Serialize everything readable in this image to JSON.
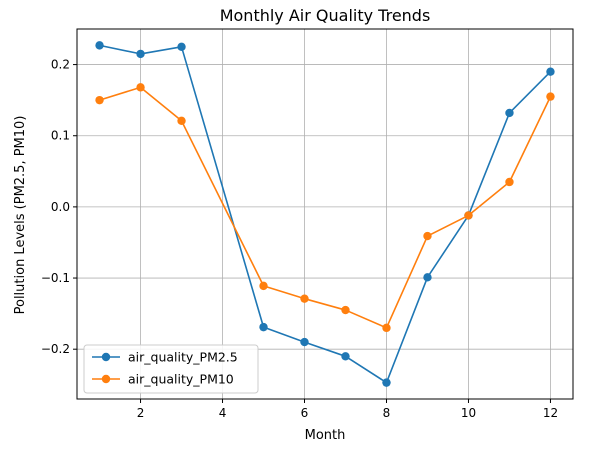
{
  "chart_data": {
    "type": "line",
    "title": "Monthly Air Quality Trends",
    "xlabel": "Month",
    "ylabel": "Pollution Levels (PM2.5, PM10)",
    "xlim": [
      0.45,
      12.55
    ],
    "ylim": [
      -0.27,
      0.25
    ],
    "xticks": [
      2,
      4,
      6,
      8,
      10,
      12
    ],
    "yticks": [
      -0.2,
      -0.1,
      0.0,
      0.1,
      0.2
    ],
    "ytick_labels": [
      "−0.2",
      "−0.1",
      "0.0",
      "0.1",
      "0.2"
    ],
    "grid": true,
    "legend_position": "lower-left",
    "series": [
      {
        "name": "air_quality_PM2.5",
        "color": "#1f77b4",
        "x": [
          1,
          2,
          3,
          5,
          6,
          7,
          8,
          9,
          10,
          11,
          12
        ],
        "y": [
          0.227,
          0.215,
          0.225,
          -0.169,
          -0.19,
          -0.21,
          -0.247,
          -0.099,
          -0.012,
          0.132,
          0.19
        ]
      },
      {
        "name": "air_quality_PM10",
        "color": "#ff7f0e",
        "x": [
          1,
          2,
          3,
          5,
          6,
          7,
          8,
          9,
          10,
          11,
          12
        ],
        "y": [
          0.15,
          0.168,
          0.121,
          -0.111,
          -0.129,
          -0.145,
          -0.17,
          -0.041,
          -0.012,
          0.035,
          0.155
        ]
      }
    ]
  }
}
